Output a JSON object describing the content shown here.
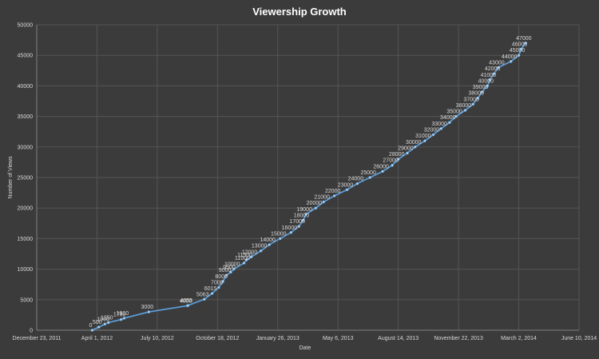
{
  "chart_data": {
    "type": "line",
    "title": "Viewership Growth",
    "xlabel": "Date",
    "ylabel": "Number of Views",
    "xlim": [
      "2011-12-23",
      "2014-06-10"
    ],
    "x_ticks": [
      "December 23, 2011",
      "April 1, 2012",
      "July 10, 2012",
      "October 18, 2012",
      "January 26, 2013",
      "May 6, 2013",
      "August 14, 2013",
      "November 22, 2013",
      "March 2, 2014",
      "June 10, 2014"
    ],
    "ylim": [
      0,
      50000
    ],
    "y_ticks": [
      "0",
      "5000",
      "10000",
      "15000",
      "20000",
      "25000",
      "30000",
      "35000",
      "40000",
      "45000",
      "50000"
    ],
    "grid": true,
    "legend": "none",
    "series_color": "#5b9bd5",
    "series": [
      {
        "points": [
          {
            "x": "2012-03-24",
            "y": 0,
            "label": "0"
          },
          {
            "x": "2012-04-04",
            "y": 500,
            "label": "500"
          },
          {
            "x": "2012-04-14",
            "y": 1000,
            "label": "1000"
          },
          {
            "x": "2012-04-20",
            "y": 1250,
            "label": "1250"
          },
          {
            "x": "2012-05-11",
            "y": 1750,
            "label": "1750"
          },
          {
            "x": "2012-05-16",
            "y": 1960,
            "label": "1960"
          },
          {
            "x": "2012-06-26",
            "y": 3000,
            "label": "3000"
          },
          {
            "x": "2012-08-29",
            "y": 4000,
            "label": "4000"
          },
          {
            "x": "2012-08-30",
            "y": 4055,
            "label": "4055"
          },
          {
            "x": "2012-09-26",
            "y": 5063,
            "label": "5063"
          },
          {
            "x": "2012-10-09",
            "y": 6015,
            "label": "6015"
          },
          {
            "x": "2012-10-20",
            "y": 7000,
            "label": "7000"
          },
          {
            "x": "2012-10-27",
            "y": 8000,
            "label": "8000"
          },
          {
            "x": "2012-11-02",
            "y": 9000,
            "label": "9000"
          },
          {
            "x": "2012-11-09",
            "y": 9500,
            "label": "9500"
          },
          {
            "x": "2012-11-14",
            "y": 10000,
            "label": "10000"
          },
          {
            "x": "2012-12-01",
            "y": 11000,
            "label": "11000"
          },
          {
            "x": "2012-12-05",
            "y": 11500,
            "label": "11500"
          },
          {
            "x": "2012-12-13",
            "y": 12000,
            "label": "12000"
          },
          {
            "x": "2012-12-29",
            "y": 13000,
            "label": "13000"
          },
          {
            "x": "2013-01-12",
            "y": 14000,
            "label": "14000"
          },
          {
            "x": "2013-01-30",
            "y": 15000,
            "label": "15000"
          },
          {
            "x": "2013-02-17",
            "y": 16000,
            "label": "16000"
          },
          {
            "x": "2013-03-02",
            "y": 17000,
            "label": "17000"
          },
          {
            "x": "2013-03-09",
            "y": 18000,
            "label": "18000"
          },
          {
            "x": "2013-03-14",
            "y": 19000,
            "label": "19000"
          },
          {
            "x": "2013-03-30",
            "y": 20000,
            "label": "20000"
          },
          {
            "x": "2013-04-12",
            "y": 21000,
            "label": "21000"
          },
          {
            "x": "2013-04-30",
            "y": 22000,
            "label": "22000"
          },
          {
            "x": "2013-05-21",
            "y": 23000,
            "label": "23000"
          },
          {
            "x": "2013-06-07",
            "y": 24000,
            "label": "24000"
          },
          {
            "x": "2013-06-28",
            "y": 25000,
            "label": "25000"
          },
          {
            "x": "2013-07-19",
            "y": 26000,
            "label": "26000"
          },
          {
            "x": "2013-08-04",
            "y": 27000,
            "label": "27000"
          },
          {
            "x": "2013-08-14",
            "y": 28000,
            "label": "28000"
          },
          {
            "x": "2013-08-29",
            "y": 29000,
            "label": "29000"
          },
          {
            "x": "2013-09-11",
            "y": 30000,
            "label": "30000"
          },
          {
            "x": "2013-09-27",
            "y": 31000,
            "label": "31000"
          },
          {
            "x": "2013-10-11",
            "y": 32000,
            "label": "32000"
          },
          {
            "x": "2013-10-24",
            "y": 33000,
            "label": "33000"
          },
          {
            "x": "2013-11-07",
            "y": 34000,
            "label": "34000"
          },
          {
            "x": "2013-11-18",
            "y": 35000,
            "label": "35000"
          },
          {
            "x": "2013-12-03",
            "y": 36000,
            "label": "36000"
          },
          {
            "x": "2013-12-16",
            "y": 37000,
            "label": "37000"
          },
          {
            "x": "2013-12-24",
            "y": 38000,
            "label": "38000"
          },
          {
            "x": "2013-12-31",
            "y": 39000,
            "label": "39000"
          },
          {
            "x": "2014-01-09",
            "y": 40000,
            "label": "40000"
          },
          {
            "x": "2014-01-13",
            "y": 41000,
            "label": "41000"
          },
          {
            "x": "2014-01-20",
            "y": 42000,
            "label": "42000"
          },
          {
            "x": "2014-01-27",
            "y": 43000,
            "label": "43000"
          },
          {
            "x": "2014-02-17",
            "y": 44000,
            "label": "44000"
          },
          {
            "x": "2014-03-02",
            "y": 45000,
            "label": "45000"
          },
          {
            "x": "2014-03-06",
            "y": 46000,
            "label": "46000"
          },
          {
            "x": "2014-03-13",
            "y": 47000,
            "label": "47000"
          }
        ]
      }
    ]
  }
}
